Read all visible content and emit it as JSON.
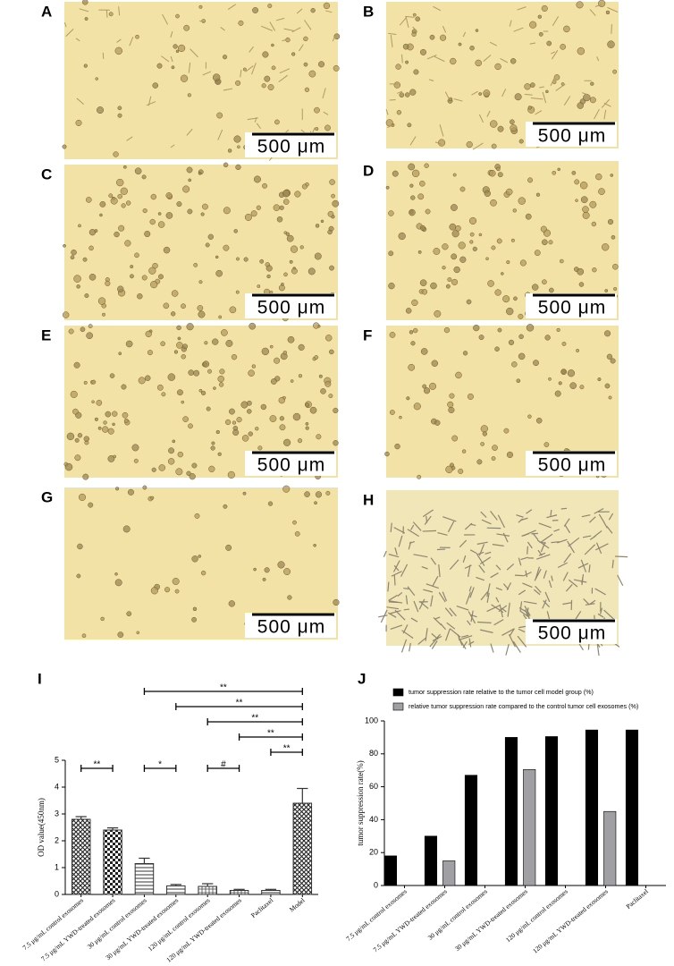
{
  "panels": [
    {
      "label": "A",
      "scale_bar": "500 μm"
    },
    {
      "label": "B",
      "scale_bar": "500 μm"
    },
    {
      "label": "C",
      "scale_bar": "500 μm"
    },
    {
      "label": "D",
      "scale_bar": "500 μm"
    },
    {
      "label": "E",
      "scale_bar": "500 μm"
    },
    {
      "label": "F",
      "scale_bar": "500 μm"
    },
    {
      "label": "G",
      "scale_bar": "500 μm"
    },
    {
      "label": "H",
      "scale_bar": "500 μm"
    }
  ],
  "chart_data": [
    {
      "type": "bar",
      "label": "I",
      "ylabel": "OD value(450nm)",
      "color": "#333333",
      "categories": [
        "7.5 μg/mL control exosomes",
        "7.5 μg/mL YWD-treated exosomes",
        "30 μg/mL control exosomes",
        "30 μg/mL YWD-treated exosomes",
        "120 μg/mL control exosomes",
        "120 μg/mL YWD-treated exosomes",
        "Paclitaxel",
        "Model"
      ],
      "values": [
        2.8,
        2.4,
        1.15,
        0.32,
        0.3,
        0.15,
        0.15,
        3.4
      ],
      "errors": [
        0.1,
        0.08,
        0.2,
        0.05,
        0.1,
        0.04,
        0.04,
        0.55
      ],
      "ylim": [
        0,
        5
      ],
      "yticks": [
        0,
        1,
        2,
        3,
        4,
        5
      ],
      "significance": [
        {
          "text": "**",
          "between": [
            "30 μg/mL control exosomes",
            "Model"
          ]
        },
        {
          "text": "**",
          "between": [
            "30 μg/mL YWD-treated exosomes",
            "Model"
          ]
        },
        {
          "text": "**",
          "between": [
            "120 μg/mL control exosomes",
            "Model"
          ]
        },
        {
          "text": "**",
          "between": [
            "120 μg/mL YWD-treated exosomes",
            "Model"
          ]
        },
        {
          "text": "**",
          "between": [
            "Paclitaxel",
            "Model"
          ]
        },
        {
          "text": "**",
          "between": [
            "7.5 μg/mL control exosomes",
            "7.5 μg/mL YWD-treated exosomes"
          ]
        },
        {
          "text": "*",
          "between": [
            "30 μg/mL control exosomes",
            "30 μg/mL YWD-treated exosomes"
          ]
        },
        {
          "text": "#",
          "between": [
            "120 μg/mL control exosomes",
            "120 μg/mL YWD-treated exosomes"
          ]
        }
      ]
    },
    {
      "type": "grouped_bar",
      "label": "J",
      "ylabel": "tumor suppression rate(%)",
      "legend": "upper-left",
      "categories": [
        "7.5 μg/mL control exosomes",
        "7.5 μg/mL YWD-treated exosomes",
        "30 μg/mL control exosomes",
        "30 μg/mL YWD-treated exosomes",
        "120 μg/mL control exosomes",
        "120 μg/mL YWD-treated exosomes",
        "Paclitaxel"
      ],
      "series": [
        {
          "name": "tumor suppression rate relative to the tumor cell model group (%)",
          "color": "#000000",
          "values": [
            18,
            30,
            67,
            90,
            90.5,
            94.5,
            94.5
          ]
        },
        {
          "name": "relative tumor suppression rate compared to the control tumor cell exosomes (%)",
          "color": "#a0a0a4",
          "values": [
            null,
            15,
            null,
            70.5,
            null,
            45,
            null
          ]
        }
      ],
      "ylim": [
        0,
        100
      ],
      "yticks": [
        0,
        20,
        40,
        60,
        80,
        100
      ]
    }
  ]
}
